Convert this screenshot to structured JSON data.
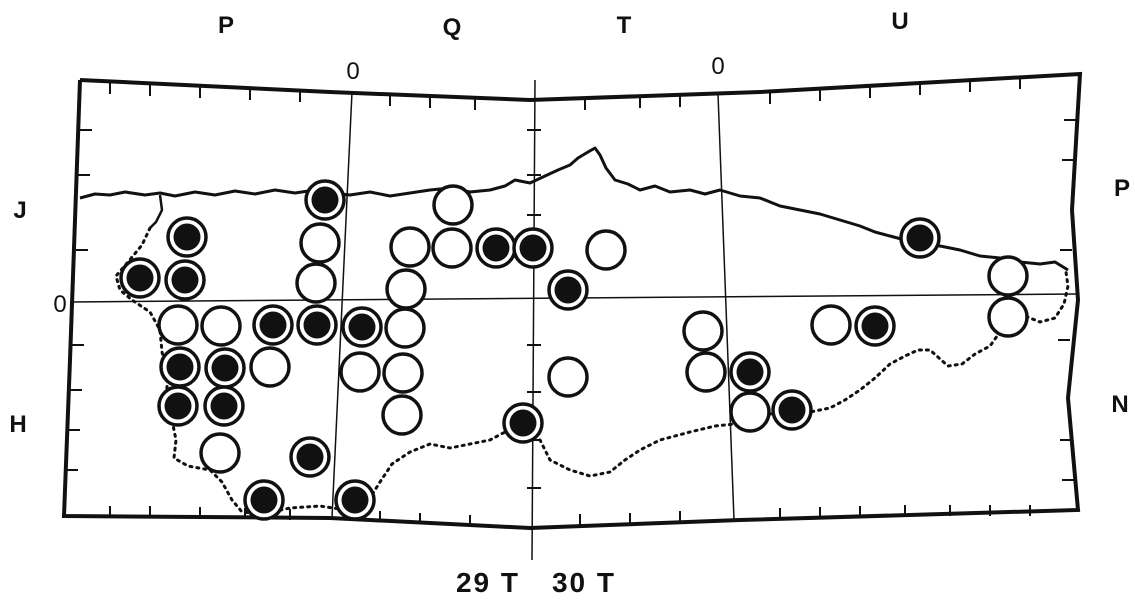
{
  "grid_labels": {
    "top": [
      "P",
      "Q",
      "T",
      "U"
    ],
    "left": [
      "J",
      "H"
    ],
    "right": [
      "P",
      "N"
    ],
    "zero": "0"
  },
  "zone_labels": {
    "left": "29 T",
    "right": "30 T"
  },
  "legend_types": {
    "filled": "filled-circle",
    "open": "open-circle"
  },
  "colors": {
    "ink": "#111111",
    "background": "#ffffff"
  }
}
